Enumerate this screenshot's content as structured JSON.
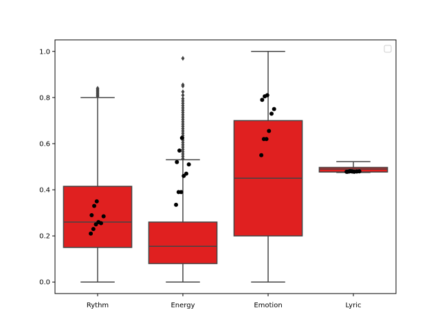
{
  "chart_data": {
    "type": "boxplot",
    "title": "",
    "xlabel": "",
    "ylabel": "",
    "categories": [
      "Rythm",
      "Energy",
      "Emotion",
      "Lyric"
    ],
    "ylim": [
      -0.05,
      1.05
    ],
    "yticks": [
      0.0,
      0.2,
      0.4,
      0.6,
      0.8,
      1.0
    ],
    "ytick_labels": [
      "0.0",
      "0.2",
      "0.4",
      "0.6",
      "0.8",
      "1.0"
    ],
    "grid": false,
    "legend": {
      "placement": "top-right",
      "entries": []
    },
    "colors": {
      "box_fill": "#e02020",
      "box_edge": "#444444",
      "points": "#000000",
      "outliers": "#444444"
    },
    "boxes": [
      {
        "category": "Rythm",
        "whisker_low": 0.0,
        "q1": 0.15,
        "median": 0.26,
        "q3": 0.415,
        "whisker_high": 0.8,
        "outliers": [
          0.805,
          0.81,
          0.815,
          0.82,
          0.825,
          0.83,
          0.835,
          0.84
        ],
        "points": [
          0.21,
          0.23,
          0.25,
          0.26,
          0.255,
          0.285,
          0.29,
          0.33,
          0.35
        ]
      },
      {
        "category": "Energy",
        "whisker_low": 0.0,
        "q1": 0.08,
        "median": 0.155,
        "q3": 0.26,
        "whisker_high": 0.53,
        "outliers": [
          0.535,
          0.545,
          0.555,
          0.565,
          0.575,
          0.585,
          0.595,
          0.605,
          0.615,
          0.625,
          0.635,
          0.645,
          0.655,
          0.665,
          0.675,
          0.685,
          0.695,
          0.705,
          0.715,
          0.725,
          0.735,
          0.745,
          0.755,
          0.765,
          0.775,
          0.785,
          0.795,
          0.81,
          0.825,
          0.85,
          0.855,
          0.97
        ],
        "points": [
          0.335,
          0.39,
          0.39,
          0.46,
          0.47,
          0.51,
          0.52,
          0.57,
          0.625
        ]
      },
      {
        "category": "Emotion",
        "whisker_low": 0.0,
        "q1": 0.2,
        "median": 0.45,
        "q3": 0.7,
        "whisker_high": 1.0,
        "outliers": [],
        "points": [
          0.55,
          0.62,
          0.62,
          0.655,
          0.73,
          0.75,
          0.79,
          0.805,
          0.81
        ]
      },
      {
        "category": "Lyric",
        "whisker_low": 0.475,
        "q1": 0.477,
        "median": 0.49,
        "q3": 0.497,
        "whisker_high": 0.522,
        "outliers": [],
        "points": [
          0.478,
          0.479,
          0.48,
          0.478,
          0.479,
          0.48,
          0.478,
          0.481,
          0.479
        ]
      }
    ]
  }
}
